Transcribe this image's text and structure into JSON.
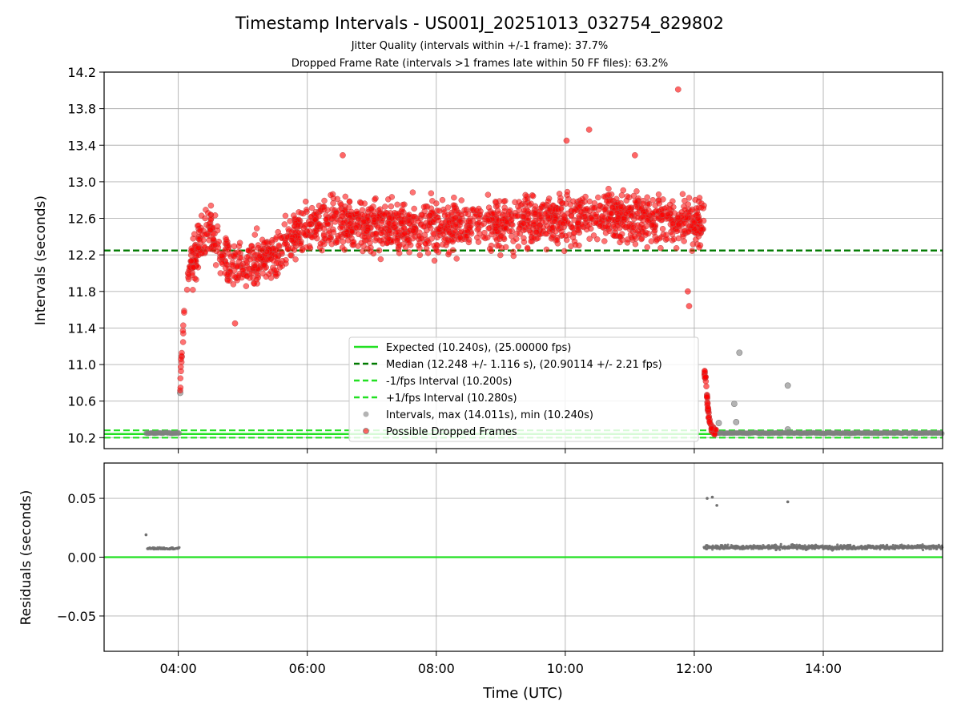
{
  "chart_data": [
    {
      "type": "scatter",
      "title": "Timestamp Intervals - US001J_20251013_032754_829802",
      "subtitle_lines": [
        "Jitter Quality (intervals within +/-1 frame): 37.7%",
        "Dropped Frame Rate (intervals >1 frames late within 50 FF files): 63.2%"
      ],
      "xlabel": "",
      "ylabel": "Intervals (seconds)",
      "xlim_hours": [
        2.85,
        15.85
      ],
      "ylim": [
        10.08,
        14.2
      ],
      "grid": true,
      "yticks": [
        10.2,
        10.6,
        11.0,
        11.4,
        11.8,
        12.2,
        12.6,
        13.0,
        13.4,
        13.8,
        14.2
      ],
      "ytick_labels": [
        "10.2",
        "10.6",
        "11.0",
        "11.4",
        "11.8",
        "12.2",
        "12.6",
        "13.0",
        "13.4",
        "13.8",
        "14.2"
      ],
      "reference_lines": {
        "expected": 10.24,
        "median": 12.248,
        "minus_fps": 10.2,
        "plus_fps": 10.28
      },
      "legend": {
        "placement": "lower-center",
        "entries": [
          "Expected (10.240s), (25.00000 fps)",
          "Median (12.248 +/- 1.116 s), (20.90114 +/- 2.21 fps)",
          "-1/fps Interval (10.200s)",
          "+1/fps Interval (10.280s)",
          "Intervals, max (14.011s), min (10.240s)",
          "Possible Dropped Frames"
        ]
      },
      "series": [
        {
          "name": "Intervals, max (14.011s), min (10.240s)",
          "color": "#808080",
          "segments": [
            {
              "x_start": 3.5,
              "x_end": 4.02,
              "y": 10.25
            },
            {
              "x_start": 12.35,
              "x_end": 15.85,
              "y": 10.25
            }
          ],
          "outliers": [
            {
              "x": 4.03,
              "y": 10.69
            },
            {
              "x": 12.38,
              "y": 10.36
            },
            {
              "x": 12.62,
              "y": 10.57
            },
            {
              "x": 12.65,
              "y": 10.37
            },
            {
              "x": 12.7,
              "y": 11.13
            },
            {
              "x": 13.45,
              "y": 10.77
            },
            {
              "x": 13.45,
              "y": 10.29
            }
          ]
        },
        {
          "name": "Possible Dropped Frames",
          "color": "#ff0000",
          "profile": [
            [
              4.02,
              10.65
            ],
            [
              4.05,
              11.05
            ],
            [
              4.1,
              11.6
            ],
            [
              4.15,
              11.9
            ],
            [
              4.2,
              12.1
            ],
            [
              4.3,
              12.25
            ],
            [
              4.4,
              12.4
            ],
            [
              4.5,
              12.45
            ],
            [
              4.7,
              12.2
            ],
            [
              4.9,
              12.05
            ],
            [
              5.1,
              12.1
            ],
            [
              5.3,
              12.15
            ],
            [
              5.5,
              12.2
            ],
            [
              5.7,
              12.35
            ],
            [
              5.9,
              12.5
            ],
            [
              6.2,
              12.55
            ],
            [
              7.0,
              12.55
            ],
            [
              8.0,
              12.5
            ],
            [
              9.0,
              12.55
            ],
            [
              10.0,
              12.6
            ],
            [
              11.0,
              12.6
            ],
            [
              12.15,
              12.55
            ]
          ],
          "spread": 0.27,
          "count": 1900,
          "outliers": [
            {
              "x": 11.75,
              "y": 14.01
            },
            {
              "x": 10.02,
              "y": 13.45
            },
            {
              "x": 10.37,
              "y": 13.57
            },
            {
              "x": 6.55,
              "y": 13.29
            },
            {
              "x": 4.88,
              "y": 11.45
            },
            {
              "x": 11.92,
              "y": 11.64
            },
            {
              "x": 11.9,
              "y": 11.8
            },
            {
              "x": 11.08,
              "y": 13.29
            }
          ],
          "drop_tail": [
            [
              12.15,
              10.95
            ],
            [
              12.18,
              10.82
            ],
            [
              12.2,
              10.62
            ],
            [
              12.22,
              10.46
            ],
            [
              12.25,
              10.33
            ],
            [
              12.3,
              10.27
            ],
            [
              12.35,
              10.25
            ]
          ]
        }
      ]
    },
    {
      "type": "scatter",
      "xlabel": "Time (UTC)",
      "ylabel": "Residuals (seconds)",
      "xlim_hours": [
        2.85,
        15.85
      ],
      "ylim": [
        -0.08,
        0.08
      ],
      "grid": true,
      "yticks": [
        -0.05,
        0.0,
        0.05
      ],
      "ytick_labels": [
        "−0.05",
        "0.00",
        "0.05"
      ],
      "xticks_hours": [
        4,
        6,
        8,
        10,
        12,
        14
      ],
      "xtick_labels": [
        "04:00",
        "06:00",
        "08:00",
        "10:00",
        "12:00",
        "14:00"
      ],
      "zero_line_color": "#22e022",
      "series": [
        {
          "name": "",
          "color": "#707070",
          "segments": [
            {
              "x_start": 3.52,
              "x_end": 4.02,
              "y": 0.0075
            },
            {
              "x_start": 12.15,
              "x_end": 15.85,
              "y": 0.0085
            }
          ],
          "outliers": [
            {
              "x": 3.5,
              "y": 0.019
            },
            {
              "x": 12.2,
              "y": 0.05
            },
            {
              "x": 12.28,
              "y": 0.051
            },
            {
              "x": 12.35,
              "y": 0.044
            },
            {
              "x": 13.45,
              "y": 0.047
            }
          ]
        }
      ]
    }
  ],
  "colors": {
    "expected": "#22e022",
    "median": "#007a00",
    "fps_bounds": "#22e022",
    "intervals": "#808080",
    "dropped": "#ff0000",
    "grid": "#b0b0b0"
  }
}
